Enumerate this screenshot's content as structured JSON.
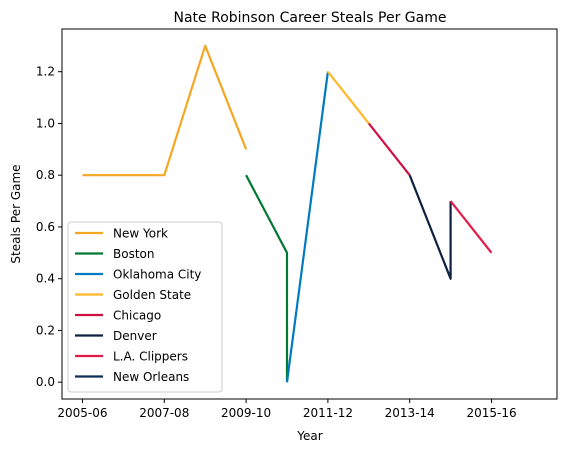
{
  "chart_data": {
    "type": "line",
    "title": "Nate Robinson Career Steals Per Game",
    "xlabel": "Year",
    "ylabel": "Steals Per Game",
    "x_tick_labels": [
      "2005-06",
      "2007-08",
      "2009-10",
      "2011-12",
      "2013-14",
      "2015-16"
    ],
    "y_ticks": [
      0.0,
      0.2,
      0.4,
      0.6,
      0.8,
      1.0,
      1.2
    ],
    "y_tick_labels": [
      "0.0",
      "0.2",
      "0.4",
      "0.6",
      "0.8",
      "1.0",
      "1.2"
    ],
    "xlim": [
      2004.5,
      2016.6
    ],
    "ylim": [
      -0.065,
      1.365
    ],
    "legend_position": "lower-left",
    "grid": false,
    "series": [
      {
        "name": "New York",
        "color": "#F5A623",
        "x": [
          2005.0,
          2006.0,
          2007.0,
          2008.0,
          2009.0,
          2009.0
        ],
        "y": [
          0.8,
          0.8,
          0.8,
          1.3,
          0.9,
          0.9
        ]
      },
      {
        "name": "Boston",
        "color": "#007A33",
        "x": [
          2009.0,
          2010.0,
          2010.0
        ],
        "y": [
          0.8,
          0.5,
          0.0
        ]
      },
      {
        "name": "Oklahoma City",
        "color": "#007AC1",
        "x": [
          2010.0,
          2011.0
        ],
        "y": [
          0.0,
          1.2
        ]
      },
      {
        "name": "Golden State",
        "color": "#FDB927",
        "x": [
          2011.0,
          2012.0
        ],
        "y": [
          1.2,
          1.0
        ]
      },
      {
        "name": "Chicago",
        "color": "#CE1141",
        "x": [
          2012.0,
          2013.0
        ],
        "y": [
          1.0,
          0.8
        ]
      },
      {
        "name": "Denver",
        "color": "#0E2240",
        "x": [
          2013.0,
          2014.0,
          2014.0
        ],
        "y": [
          0.8,
          0.4,
          0.7
        ]
      },
      {
        "name": "L.A. Clippers",
        "color": "#E31B4A",
        "x": [
          2014.0,
          2015.0
        ],
        "y": [
          0.7,
          0.5
        ]
      },
      {
        "name": "New Orleans",
        "color": "#0C2C56",
        "x": [
          2014.0,
          2014.0
        ],
        "y": [
          0.4,
          0.4
        ]
      }
    ]
  }
}
